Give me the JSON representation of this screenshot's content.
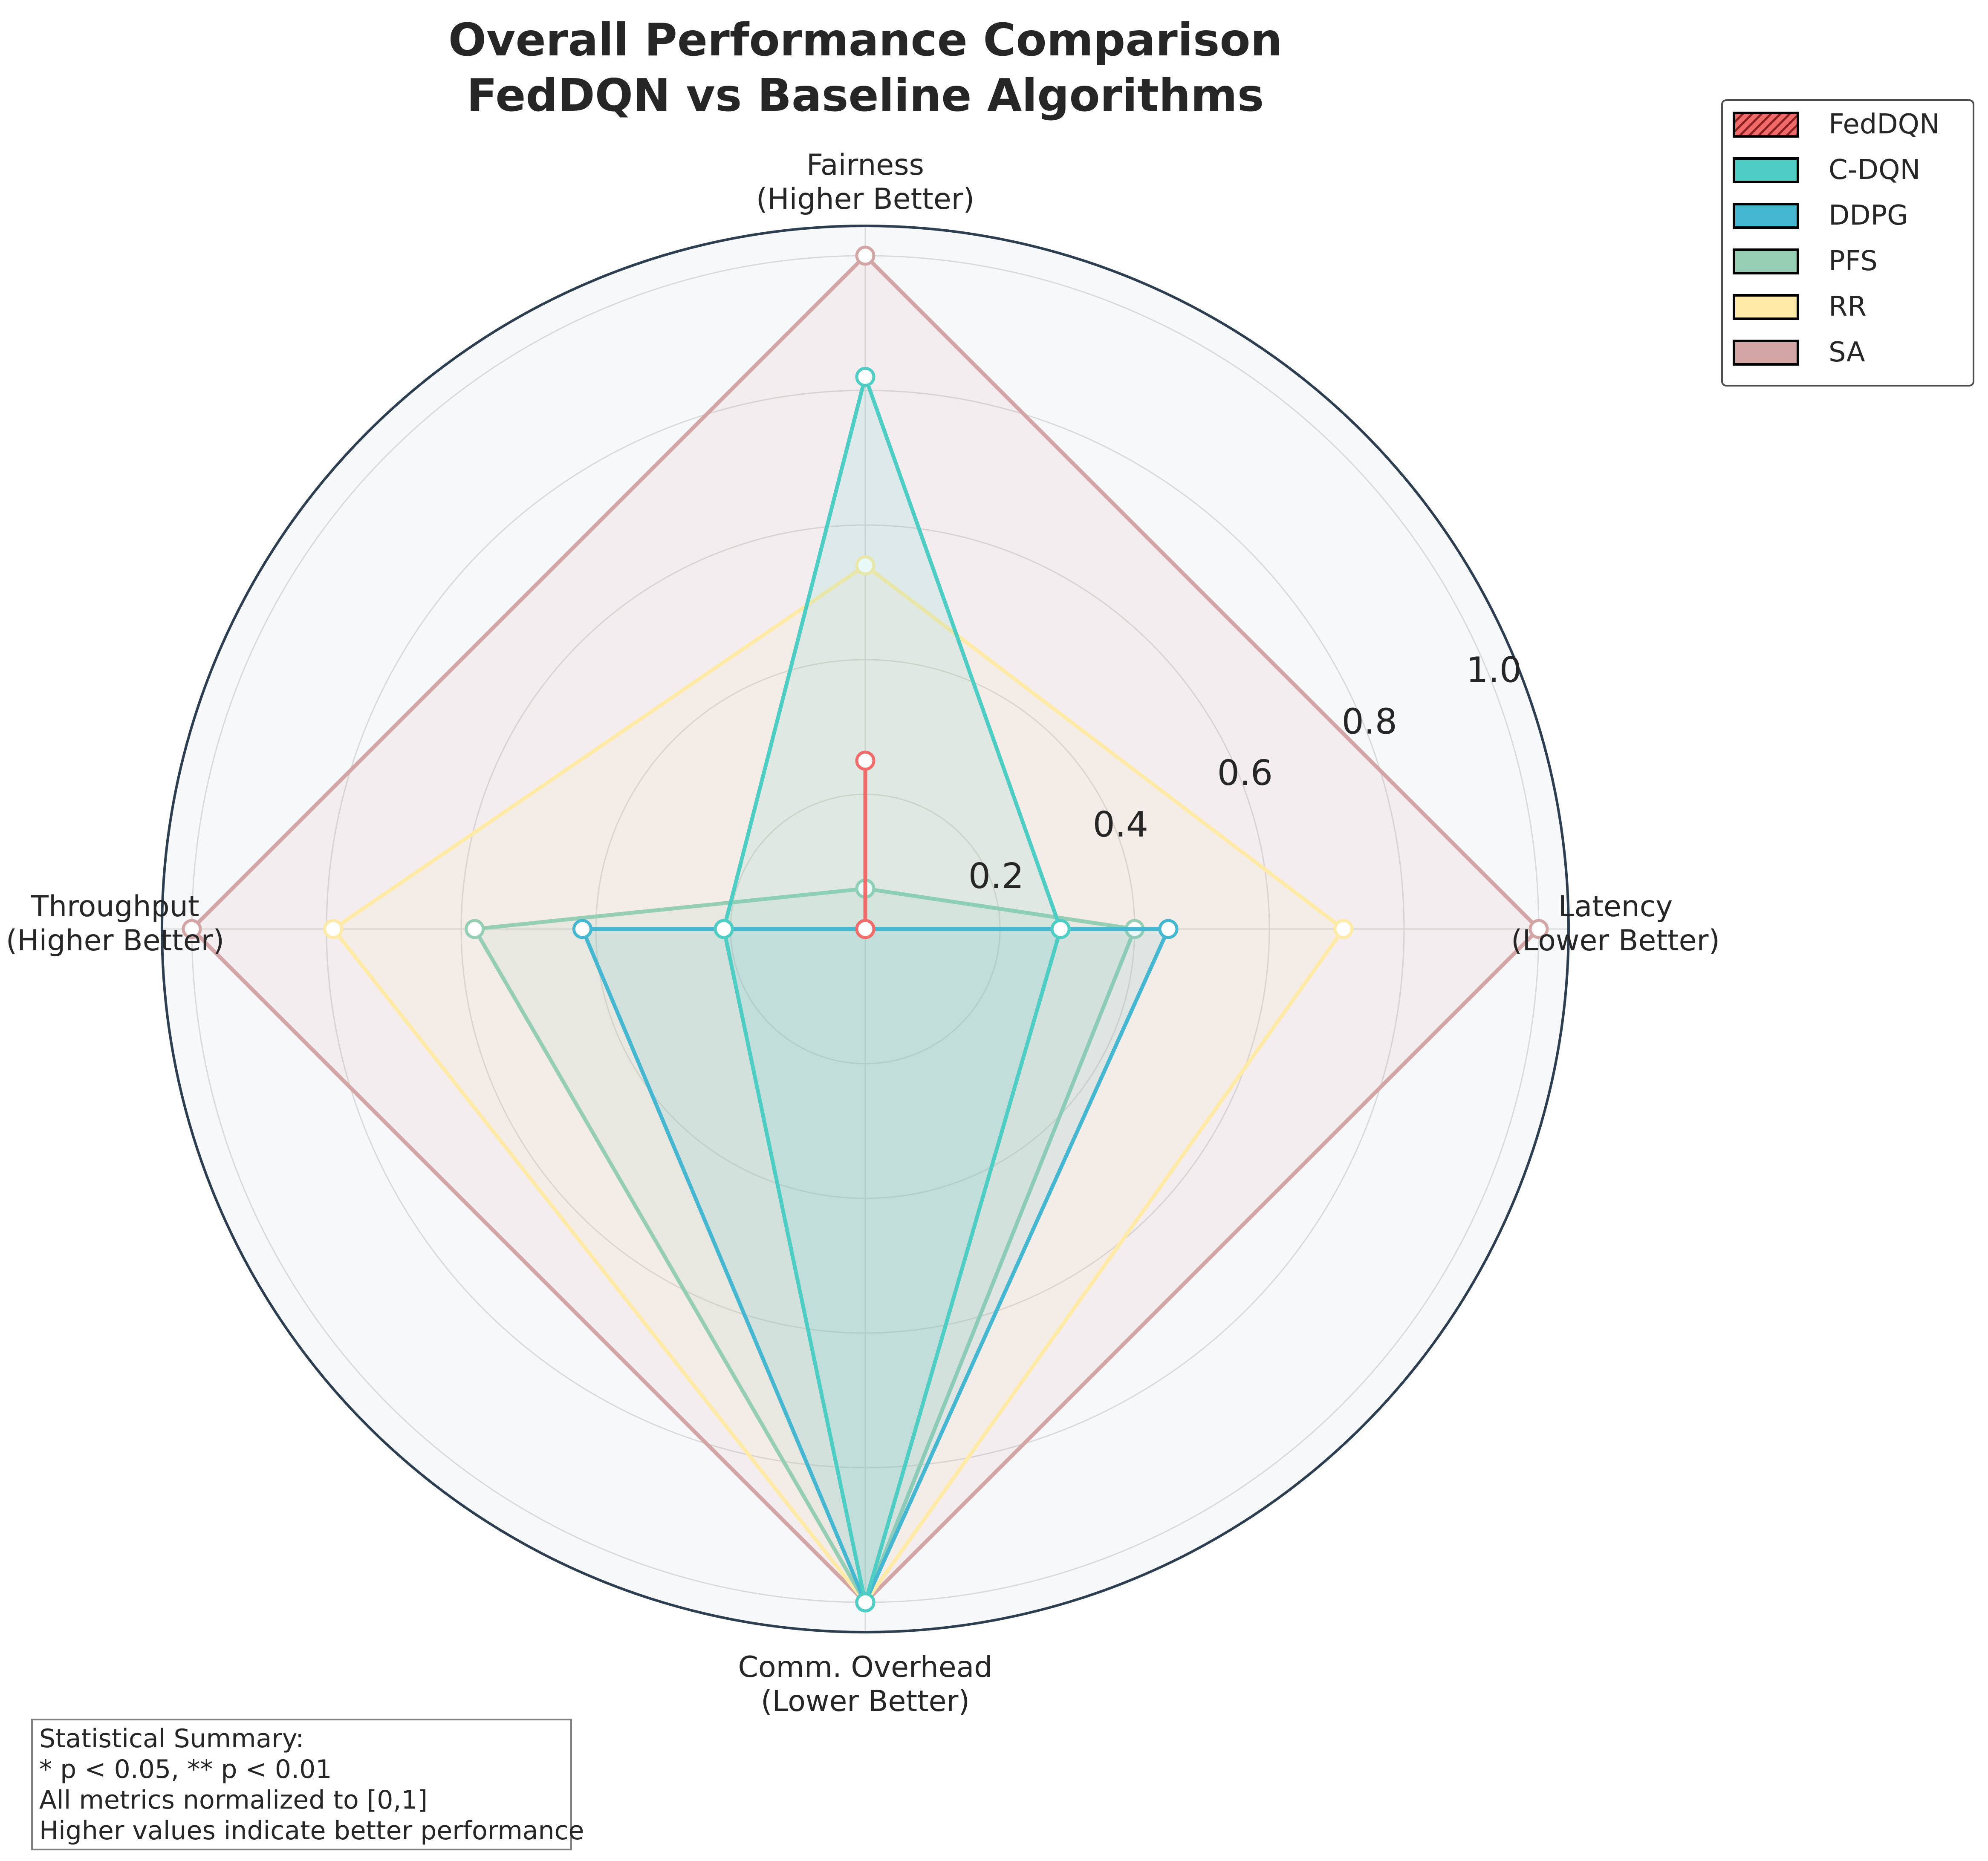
{
  "chart_data": {
    "type": "radar",
    "title_lines": [
      "Overall Performance Comparison",
      "FedDQN vs Baseline Algorithms"
    ],
    "axes": [
      {
        "name": "Fairness",
        "note": "(Higher Better)"
      },
      {
        "name": "Latency",
        "note": "(Lower Better)"
      },
      {
        "name": "Comm. Overhead",
        "note": "(Lower Better)"
      },
      {
        "name": "Throughput",
        "note": "(Higher Better)"
      }
    ],
    "radial_ticks": [
      0.2,
      0.4,
      0.6,
      0.8,
      1.0
    ],
    "radial_tick_labels": [
      "0.2",
      "0.4",
      "0.6",
      "0.8",
      "1.0"
    ],
    "rlim": [
      0,
      1.0
    ],
    "grid": true,
    "legend_position": "top-right",
    "series": [
      {
        "name": "FedDQN",
        "color": "#f26b6b",
        "hatched": true,
        "values": [
          0.25,
          0.0,
          0.0,
          0.0
        ]
      },
      {
        "name": "C-DQN",
        "color": "#4ecdc4",
        "values": [
          0.82,
          0.29,
          1.0,
          0.21
        ]
      },
      {
        "name": "DDPG",
        "color": "#45b7d1",
        "values": [
          0.0,
          0.45,
          1.0,
          0.42
        ]
      },
      {
        "name": "PFS",
        "color": "#96ceb4",
        "values": [
          0.06,
          0.4,
          1.0,
          0.58
        ]
      },
      {
        "name": "RR",
        "color": "#ffeaa7",
        "values": [
          0.54,
          0.71,
          1.0,
          0.79
        ]
      },
      {
        "name": "SA",
        "color": "#d4a5a5",
        "values": [
          1.0,
          1.0,
          1.0,
          1.0
        ]
      }
    ]
  },
  "stats_box": {
    "lines": [
      "Statistical Summary:",
      "* p < 0.05, ** p < 0.01",
      "All metrics normalized to [0,1]",
      "Higher values indicate better performance"
    ]
  }
}
